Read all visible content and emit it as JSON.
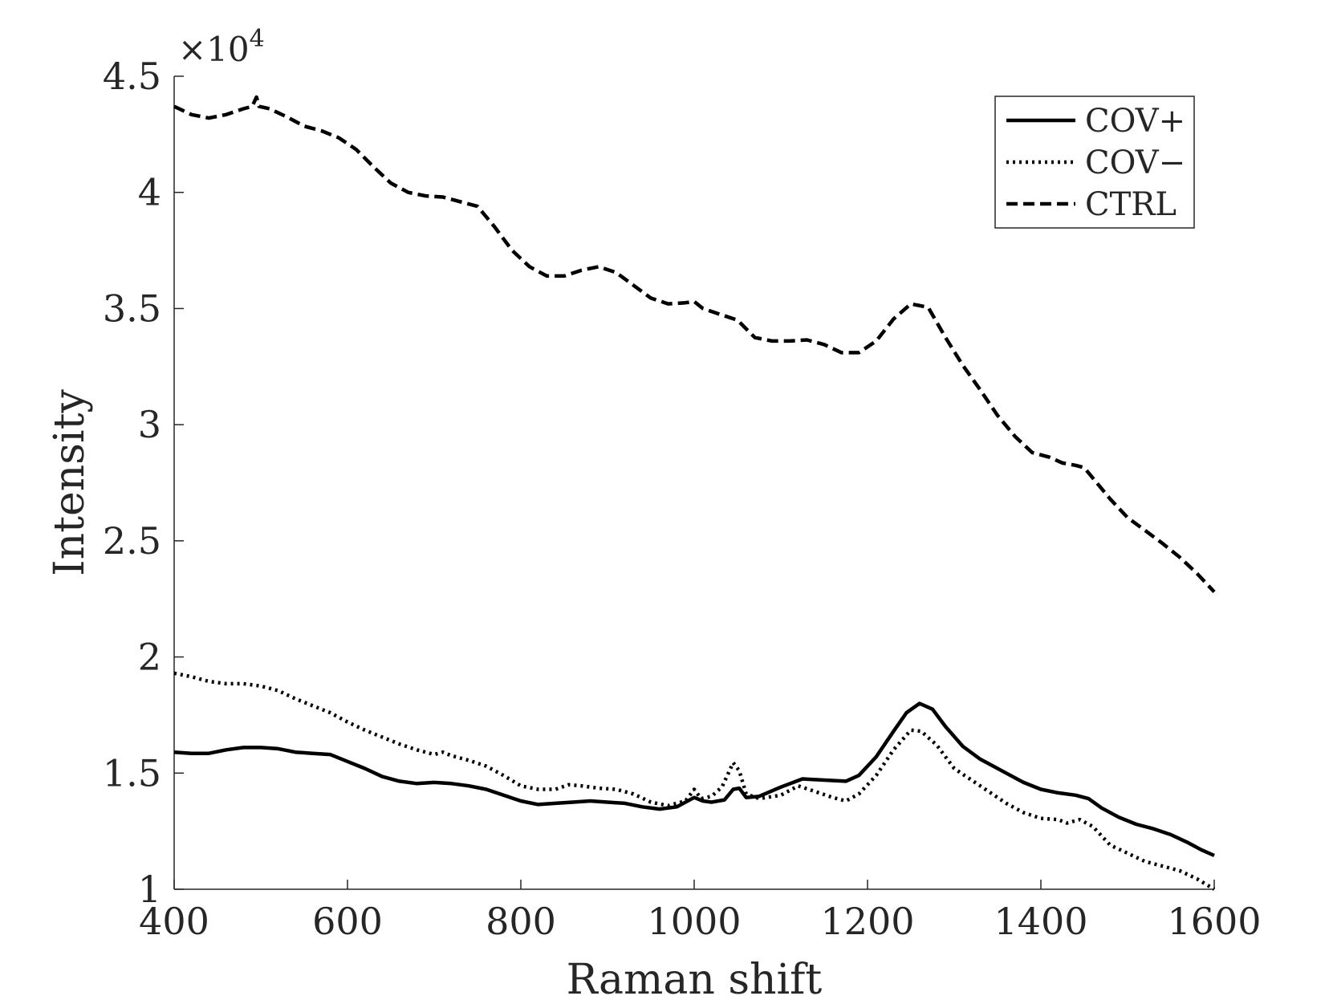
{
  "chart_data": {
    "type": "line",
    "title": "",
    "xlabel": "Raman shift",
    "ylabel": "Intensity",
    "xlim": [
      400,
      1600
    ],
    "ylim": [
      1.0,
      4.5
    ],
    "y_multiplier_label": "×10",
    "y_multiplier_exponent": "4",
    "x_ticks": [
      400,
      600,
      800,
      1000,
      1200,
      1400,
      1600
    ],
    "x_tick_labels": [
      "400",
      "600",
      "800",
      "1000",
      "1200",
      "1400",
      "1600"
    ],
    "y_ticks": [
      1.0,
      1.5,
      2.0,
      2.5,
      3.0,
      3.5,
      4.0,
      4.5
    ],
    "y_tick_labels": [
      "1",
      "1.5",
      "2",
      "2.5",
      "3",
      "3.5",
      "4",
      "4.5"
    ],
    "grid": false,
    "legend_position": "top-right",
    "series": [
      {
        "name": "COV+",
        "style": "solid",
        "color": "#000000",
        "points": [
          [
            400,
            1.59
          ],
          [
            420,
            1.585
          ],
          [
            440,
            1.585
          ],
          [
            460,
            1.6
          ],
          [
            480,
            1.61
          ],
          [
            500,
            1.61
          ],
          [
            520,
            1.605
          ],
          [
            540,
            1.59
          ],
          [
            560,
            1.585
          ],
          [
            580,
            1.58
          ],
          [
            600,
            1.55
          ],
          [
            620,
            1.52
          ],
          [
            640,
            1.485
          ],
          [
            660,
            1.465
          ],
          [
            680,
            1.455
          ],
          [
            700,
            1.46
          ],
          [
            720,
            1.455
          ],
          [
            740,
            1.445
          ],
          [
            760,
            1.43
          ],
          [
            780,
            1.405
          ],
          [
            800,
            1.38
          ],
          [
            820,
            1.365
          ],
          [
            840,
            1.37
          ],
          [
            860,
            1.375
          ],
          [
            880,
            1.38
          ],
          [
            900,
            1.375
          ],
          [
            920,
            1.37
          ],
          [
            940,
            1.355
          ],
          [
            960,
            1.345
          ],
          [
            980,
            1.355
          ],
          [
            1000,
            1.395
          ],
          [
            1010,
            1.38
          ],
          [
            1020,
            1.375
          ],
          [
            1035,
            1.385
          ],
          [
            1045,
            1.43
          ],
          [
            1052,
            1.435
          ],
          [
            1060,
            1.395
          ],
          [
            1075,
            1.4
          ],
          [
            1100,
            1.44
          ],
          [
            1125,
            1.475
          ],
          [
            1150,
            1.47
          ],
          [
            1175,
            1.465
          ],
          [
            1190,
            1.49
          ],
          [
            1210,
            1.57
          ],
          [
            1230,
            1.68
          ],
          [
            1245,
            1.76
          ],
          [
            1260,
            1.8
          ],
          [
            1275,
            1.775
          ],
          [
            1290,
            1.7
          ],
          [
            1310,
            1.615
          ],
          [
            1330,
            1.56
          ],
          [
            1360,
            1.5
          ],
          [
            1380,
            1.46
          ],
          [
            1400,
            1.43
          ],
          [
            1420,
            1.415
          ],
          [
            1440,
            1.405
          ],
          [
            1455,
            1.39
          ],
          [
            1470,
            1.35
          ],
          [
            1490,
            1.31
          ],
          [
            1510,
            1.28
          ],
          [
            1530,
            1.26
          ],
          [
            1550,
            1.235
          ],
          [
            1570,
            1.2
          ],
          [
            1585,
            1.17
          ],
          [
            1600,
            1.145
          ]
        ]
      },
      {
        "name": "COV−",
        "style": "dotted",
        "color": "#000000",
        "points": [
          [
            400,
            1.93
          ],
          [
            420,
            1.915
          ],
          [
            440,
            1.895
          ],
          [
            460,
            1.885
          ],
          [
            480,
            1.885
          ],
          [
            500,
            1.875
          ],
          [
            520,
            1.855
          ],
          [
            540,
            1.82
          ],
          [
            560,
            1.79
          ],
          [
            580,
            1.76
          ],
          [
            600,
            1.72
          ],
          [
            620,
            1.685
          ],
          [
            640,
            1.655
          ],
          [
            660,
            1.625
          ],
          [
            680,
            1.6
          ],
          [
            700,
            1.58
          ],
          [
            710,
            1.59
          ],
          [
            720,
            1.575
          ],
          [
            740,
            1.555
          ],
          [
            760,
            1.53
          ],
          [
            780,
            1.49
          ],
          [
            800,
            1.445
          ],
          [
            820,
            1.43
          ],
          [
            840,
            1.43
          ],
          [
            855,
            1.45
          ],
          [
            870,
            1.445
          ],
          [
            890,
            1.435
          ],
          [
            910,
            1.43
          ],
          [
            930,
            1.41
          ],
          [
            950,
            1.375
          ],
          [
            970,
            1.36
          ],
          [
            990,
            1.38
          ],
          [
            1000,
            1.43
          ],
          [
            1008,
            1.39
          ],
          [
            1020,
            1.4
          ],
          [
            1032,
            1.44
          ],
          [
            1045,
            1.545
          ],
          [
            1052,
            1.51
          ],
          [
            1060,
            1.41
          ],
          [
            1075,
            1.39
          ],
          [
            1100,
            1.405
          ],
          [
            1120,
            1.445
          ],
          [
            1140,
            1.42
          ],
          [
            1160,
            1.395
          ],
          [
            1175,
            1.38
          ],
          [
            1190,
            1.41
          ],
          [
            1210,
            1.49
          ],
          [
            1230,
            1.6
          ],
          [
            1250,
            1.685
          ],
          [
            1262,
            1.68
          ],
          [
            1280,
            1.62
          ],
          [
            1300,
            1.52
          ],
          [
            1320,
            1.47
          ],
          [
            1340,
            1.42
          ],
          [
            1360,
            1.37
          ],
          [
            1380,
            1.33
          ],
          [
            1400,
            1.305
          ],
          [
            1420,
            1.3
          ],
          [
            1430,
            1.285
          ],
          [
            1445,
            1.3
          ],
          [
            1460,
            1.27
          ],
          [
            1480,
            1.19
          ],
          [
            1500,
            1.155
          ],
          [
            1520,
            1.12
          ],
          [
            1540,
            1.1
          ],
          [
            1560,
            1.08
          ],
          [
            1580,
            1.045
          ],
          [
            1600,
            1.0
          ]
        ]
      },
      {
        "name": "CTRL",
        "style": "dashed",
        "color": "#000000",
        "points": [
          [
            400,
            4.37
          ],
          [
            420,
            4.335
          ],
          [
            440,
            4.32
          ],
          [
            460,
            4.335
          ],
          [
            480,
            4.36
          ],
          [
            490,
            4.37
          ],
          [
            495,
            4.41
          ],
          [
            498,
            4.37
          ],
          [
            510,
            4.36
          ],
          [
            530,
            4.325
          ],
          [
            550,
            4.285
          ],
          [
            570,
            4.265
          ],
          [
            590,
            4.235
          ],
          [
            610,
            4.185
          ],
          [
            630,
            4.11
          ],
          [
            650,
            4.04
          ],
          [
            670,
            4.0
          ],
          [
            690,
            3.985
          ],
          [
            710,
            3.98
          ],
          [
            730,
            3.96
          ],
          [
            750,
            3.94
          ],
          [
            770,
            3.85
          ],
          [
            790,
            3.75
          ],
          [
            810,
            3.68
          ],
          [
            830,
            3.64
          ],
          [
            850,
            3.64
          ],
          [
            870,
            3.665
          ],
          [
            890,
            3.68
          ],
          [
            910,
            3.655
          ],
          [
            930,
            3.6
          ],
          [
            950,
            3.545
          ],
          [
            970,
            3.52
          ],
          [
            990,
            3.525
          ],
          [
            1000,
            3.53
          ],
          [
            1010,
            3.5
          ],
          [
            1030,
            3.475
          ],
          [
            1050,
            3.45
          ],
          [
            1070,
            3.375
          ],
          [
            1090,
            3.36
          ],
          [
            1110,
            3.36
          ],
          [
            1130,
            3.365
          ],
          [
            1150,
            3.345
          ],
          [
            1170,
            3.31
          ],
          [
            1190,
            3.31
          ],
          [
            1210,
            3.36
          ],
          [
            1230,
            3.455
          ],
          [
            1250,
            3.52
          ],
          [
            1270,
            3.505
          ],
          [
            1290,
            3.375
          ],
          [
            1310,
            3.255
          ],
          [
            1330,
            3.15
          ],
          [
            1350,
            3.04
          ],
          [
            1370,
            2.95
          ],
          [
            1390,
            2.88
          ],
          [
            1410,
            2.86
          ],
          [
            1425,
            2.835
          ],
          [
            1440,
            2.825
          ],
          [
            1450,
            2.815
          ],
          [
            1460,
            2.77
          ],
          [
            1480,
            2.68
          ],
          [
            1500,
            2.6
          ],
          [
            1520,
            2.545
          ],
          [
            1540,
            2.49
          ],
          [
            1560,
            2.43
          ],
          [
            1580,
            2.36
          ],
          [
            1600,
            2.28
          ]
        ]
      }
    ]
  }
}
